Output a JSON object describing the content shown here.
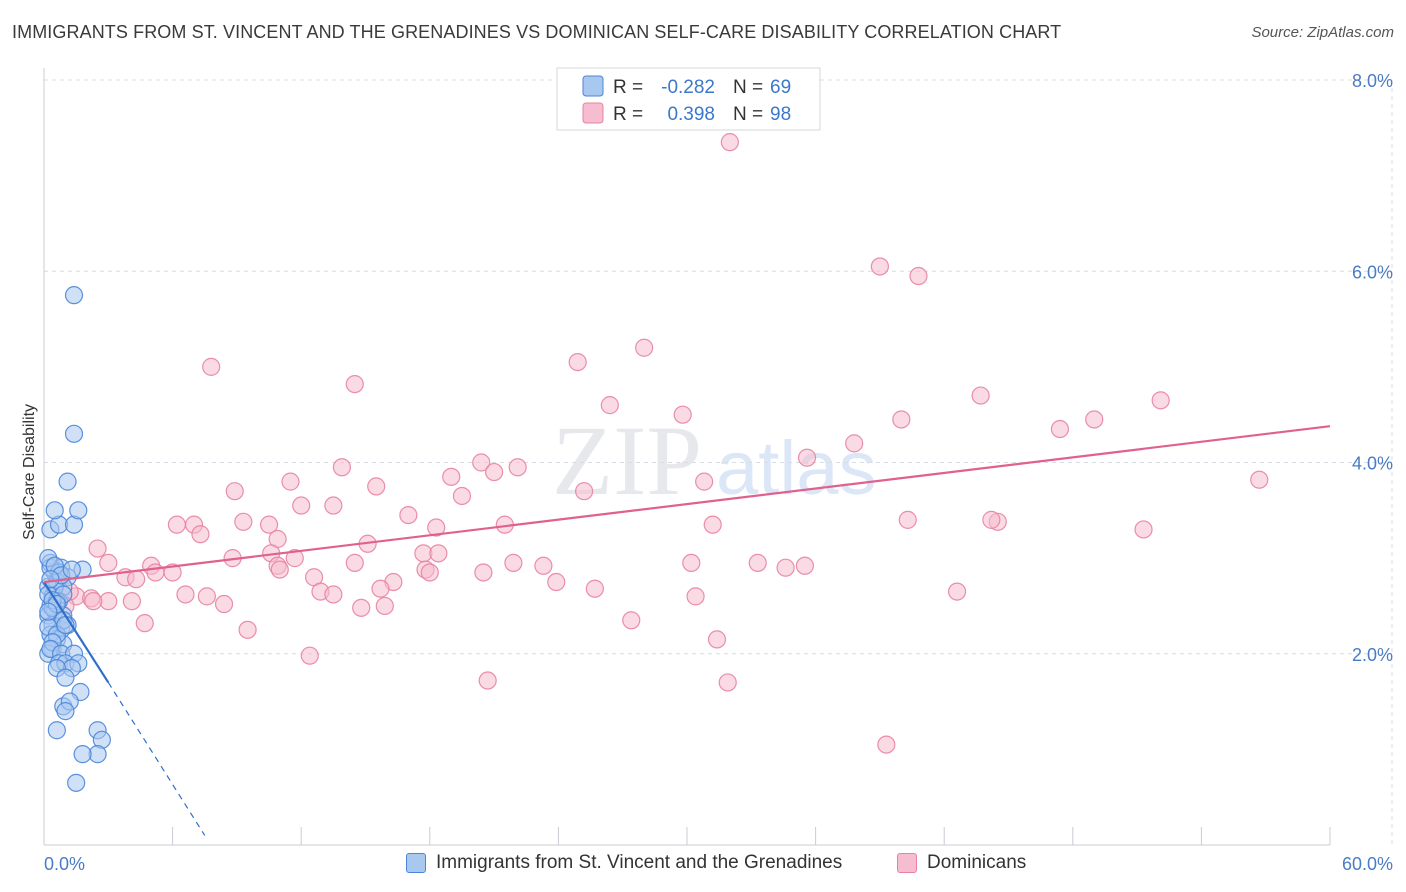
{
  "header": {
    "title": "IMMIGRANTS FROM ST. VINCENT AND THE GRENADINES VS DOMINICAN SELF-CARE DISABILITY CORRELATION CHART",
    "source": "Source: ZipAtlas.com"
  },
  "colors": {
    "blue_fill": "#a9c8f0",
    "blue_stroke": "#4a86d8",
    "blue_line": "#2f6fc9",
    "pink_fill": "#f6bcd0",
    "pink_stroke": "#e8839f",
    "pink_line": "#e0608e",
    "grid": "#d8dce4",
    "tick_label": "#4a7cc4"
  },
  "watermark": {
    "zip": "ZIP",
    "atlas": "atlas"
  },
  "legend": {
    "r_label": "R =",
    "n_label": "N =",
    "series": [
      {
        "r": "-0.282",
        "n": "69"
      },
      {
        "r": "0.398",
        "n": "98"
      }
    ]
  },
  "bottom_legend": {
    "series1": "Immigrants from St. Vincent and the Grenadines",
    "series2": "Dominicans"
  },
  "chart_data": {
    "type": "scatter",
    "title": "IMMIGRANTS FROM ST. VINCENT AND THE GRENADINES VS DOMINICAN SELF-CARE DISABILITY CORRELATION CHART",
    "xlabel": "",
    "ylabel": "Self-Care Disability",
    "xlim": [
      0,
      60
    ],
    "ylim": [
      0,
      8
    ],
    "x_tick_labels": [
      "0.0%",
      "60.0%"
    ],
    "y_ticks": [
      2,
      4,
      6,
      8
    ],
    "y_tick_labels": [
      "2.0%",
      "4.0%",
      "6.0%",
      "8.0%"
    ],
    "grid": true,
    "series": [
      {
        "name": "Immigrants from St. Vincent and the Grenadines",
        "r": -0.282,
        "n": 69,
        "trend": {
          "x0": 0.0,
          "y0": 2.75,
          "x1": 3.0,
          "y1": 1.7,
          "dashed_to_x": 7.5,
          "dashed_to_y": 0.1
        },
        "points": [
          [
            0.3,
            2.95
          ],
          [
            0.5,
            2.85
          ],
          [
            0.8,
            2.9
          ],
          [
            1.1,
            2.8
          ],
          [
            0.2,
            2.7
          ],
          [
            0.6,
            2.75
          ],
          [
            0.9,
            2.7
          ],
          [
            0.4,
            2.6
          ],
          [
            0.3,
            2.5
          ],
          [
            0.7,
            2.55
          ],
          [
            0.2,
            2.4
          ],
          [
            0.5,
            2.45
          ],
          [
            0.9,
            2.4
          ],
          [
            0.4,
            2.3
          ],
          [
            0.8,
            2.25
          ],
          [
            1.1,
            2.3
          ],
          [
            0.3,
            2.2
          ],
          [
            0.6,
            2.15
          ],
          [
            0.4,
            2.05
          ],
          [
            0.2,
            2.0
          ],
          [
            0.9,
            2.1
          ],
          [
            0.3,
            2.9
          ],
          [
            0.7,
            2.85
          ],
          [
            0.5,
            2.7
          ],
          [
            0.2,
            2.62
          ],
          [
            0.6,
            2.55
          ],
          [
            0.4,
            2.48
          ],
          [
            0.9,
            2.35
          ],
          [
            0.2,
            2.28
          ],
          [
            0.6,
            2.2
          ],
          [
            0.4,
            2.12
          ],
          [
            0.3,
            2.05
          ],
          [
            0.8,
            2.0
          ],
          [
            1.4,
            2.0
          ],
          [
            0.7,
            1.9
          ],
          [
            1.0,
            1.9
          ],
          [
            1.6,
            1.9
          ],
          [
            1.3,
            1.85
          ],
          [
            0.6,
            1.85
          ],
          [
            1.0,
            1.75
          ],
          [
            1.7,
            1.6
          ],
          [
            0.9,
            1.45
          ],
          [
            1.2,
            1.5
          ],
          [
            1.0,
            1.4
          ],
          [
            2.5,
            1.2
          ],
          [
            2.7,
            1.1
          ],
          [
            0.6,
            1.2
          ],
          [
            2.5,
            0.95
          ],
          [
            1.8,
            0.95
          ],
          [
            1.5,
            0.65
          ],
          [
            0.3,
            3.3
          ],
          [
            0.7,
            3.35
          ],
          [
            1.4,
            3.35
          ],
          [
            0.5,
            3.5
          ],
          [
            1.6,
            3.5
          ],
          [
            1.1,
            3.8
          ],
          [
            1.4,
            4.3
          ],
          [
            1.4,
            5.75
          ],
          [
            0.2,
            3.0
          ],
          [
            0.5,
            2.92
          ],
          [
            0.8,
            2.82
          ],
          [
            1.8,
            2.88
          ],
          [
            1.3,
            2.88
          ],
          [
            0.3,
            2.78
          ],
          [
            0.9,
            2.62
          ],
          [
            0.4,
            2.56
          ],
          [
            0.6,
            2.52
          ],
          [
            0.2,
            2.44
          ],
          [
            1.0,
            2.3
          ]
        ]
      },
      {
        "name": "Dominicans",
        "r": 0.398,
        "n": 98,
        "trend": {
          "x0": 0.0,
          "y0": 2.75,
          "x1": 60.0,
          "y1": 4.38
        },
        "points": [
          [
            32.0,
            7.35
          ],
          [
            39.0,
            6.05
          ],
          [
            40.8,
            5.95
          ],
          [
            7.8,
            5.0
          ],
          [
            28.0,
            5.2
          ],
          [
            24.9,
            5.05
          ],
          [
            14.5,
            4.82
          ],
          [
            26.4,
            4.6
          ],
          [
            29.8,
            4.5
          ],
          [
            43.7,
            4.7
          ],
          [
            52.1,
            4.65
          ],
          [
            47.4,
            4.35
          ],
          [
            49.0,
            4.45
          ],
          [
            40.0,
            4.45
          ],
          [
            37.8,
            4.2
          ],
          [
            35.6,
            4.05
          ],
          [
            13.9,
            3.95
          ],
          [
            20.4,
            4.0
          ],
          [
            21.0,
            3.9
          ],
          [
            22.1,
            3.95
          ],
          [
            19.0,
            3.85
          ],
          [
            56.7,
            3.82
          ],
          [
            11.5,
            3.8
          ],
          [
            15.5,
            3.75
          ],
          [
            30.8,
            3.8
          ],
          [
            25.2,
            3.7
          ],
          [
            8.9,
            3.7
          ],
          [
            19.5,
            3.65
          ],
          [
            12.0,
            3.55
          ],
          [
            13.5,
            3.55
          ],
          [
            17.0,
            3.45
          ],
          [
            6.2,
            3.35
          ],
          [
            7.0,
            3.35
          ],
          [
            9.3,
            3.38
          ],
          [
            10.5,
            3.35
          ],
          [
            18.3,
            3.32
          ],
          [
            21.5,
            3.35
          ],
          [
            31.2,
            3.35
          ],
          [
            40.3,
            3.4
          ],
          [
            44.5,
            3.38
          ],
          [
            44.2,
            3.4
          ],
          [
            51.3,
            3.3
          ],
          [
            7.3,
            3.25
          ],
          [
            10.9,
            3.2
          ],
          [
            15.1,
            3.15
          ],
          [
            2.5,
            3.1
          ],
          [
            10.6,
            3.05
          ],
          [
            17.7,
            3.05
          ],
          [
            18.4,
            3.05
          ],
          [
            8.8,
            3.0
          ],
          [
            11.7,
            3.0
          ],
          [
            3.0,
            2.95
          ],
          [
            5.0,
            2.92
          ],
          [
            10.9,
            2.92
          ],
          [
            14.5,
            2.95
          ],
          [
            21.9,
            2.95
          ],
          [
            23.3,
            2.92
          ],
          [
            30.2,
            2.95
          ],
          [
            33.3,
            2.95
          ],
          [
            34.6,
            2.9
          ],
          [
            35.5,
            2.92
          ],
          [
            5.2,
            2.85
          ],
          [
            6.0,
            2.85
          ],
          [
            11.0,
            2.88
          ],
          [
            17.8,
            2.88
          ],
          [
            18.0,
            2.85
          ],
          [
            20.5,
            2.85
          ],
          [
            3.8,
            2.8
          ],
          [
            4.3,
            2.78
          ],
          [
            12.6,
            2.8
          ],
          [
            16.3,
            2.75
          ],
          [
            23.9,
            2.75
          ],
          [
            25.7,
            2.68
          ],
          [
            15.7,
            2.68
          ],
          [
            12.9,
            2.65
          ],
          [
            13.5,
            2.62
          ],
          [
            1.5,
            2.6
          ],
          [
            2.2,
            2.58
          ],
          [
            3.0,
            2.55
          ],
          [
            6.6,
            2.62
          ],
          [
            7.6,
            2.6
          ],
          [
            8.4,
            2.52
          ],
          [
            14.8,
            2.48
          ],
          [
            15.9,
            2.5
          ],
          [
            2.3,
            2.55
          ],
          [
            4.1,
            2.55
          ],
          [
            30.4,
            2.6
          ],
          [
            42.6,
            2.65
          ],
          [
            1.2,
            2.65
          ],
          [
            4.7,
            2.32
          ],
          [
            9.5,
            2.25
          ],
          [
            27.4,
            2.35
          ],
          [
            31.4,
            2.15
          ],
          [
            12.4,
            1.98
          ],
          [
            20.7,
            1.72
          ],
          [
            31.9,
            1.7
          ],
          [
            39.3,
            1.05
          ],
          [
            1.0,
            2.5
          ]
        ]
      }
    ]
  }
}
